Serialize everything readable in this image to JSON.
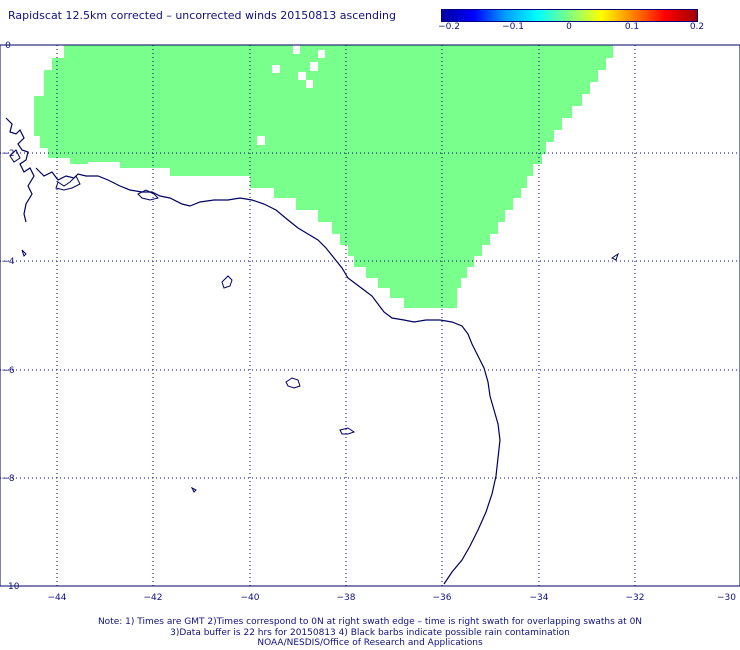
{
  "title": "Rapidscat 12.5km corrected – uncorrected winds 20150813 ascending",
  "colorbar": {
    "ticks": [
      "−0.2",
      "−0.1",
      "0",
      "0.1",
      "0.2"
    ],
    "colors": [
      "#0000a0",
      "#0000ff",
      "#00a0ff",
      "#00ffff",
      "#80ff80",
      "#ffff00",
      "#ff8000",
      "#ff0000",
      "#a00000"
    ]
  },
  "map": {
    "x_ticks": [
      "−44",
      "−42",
      "−40",
      "−38",
      "−36",
      "−34",
      "−32",
      "−30"
    ],
    "y_ticks": [
      "0",
      "−2",
      "−4",
      "−6",
      "−8",
      "−10"
    ],
    "lon_range": [
      -44.8,
      -30
    ],
    "lat_range": [
      -10,
      0
    ],
    "swath_value": 0,
    "swath_color": "#78ff8c",
    "coast_color": "#000060",
    "grid": "dotted"
  },
  "notes": [
    "Note: 1) Times are GMT 2)Times correspond to 0N at right swath edge – time is right swath for overlapping swaths at 0N",
    "3)Data buffer is 22 hrs for 20150813 4) Black barbs indicate possible rain contamination",
    "NOAA/NESDIS/Office of Research and Applications"
  ]
}
